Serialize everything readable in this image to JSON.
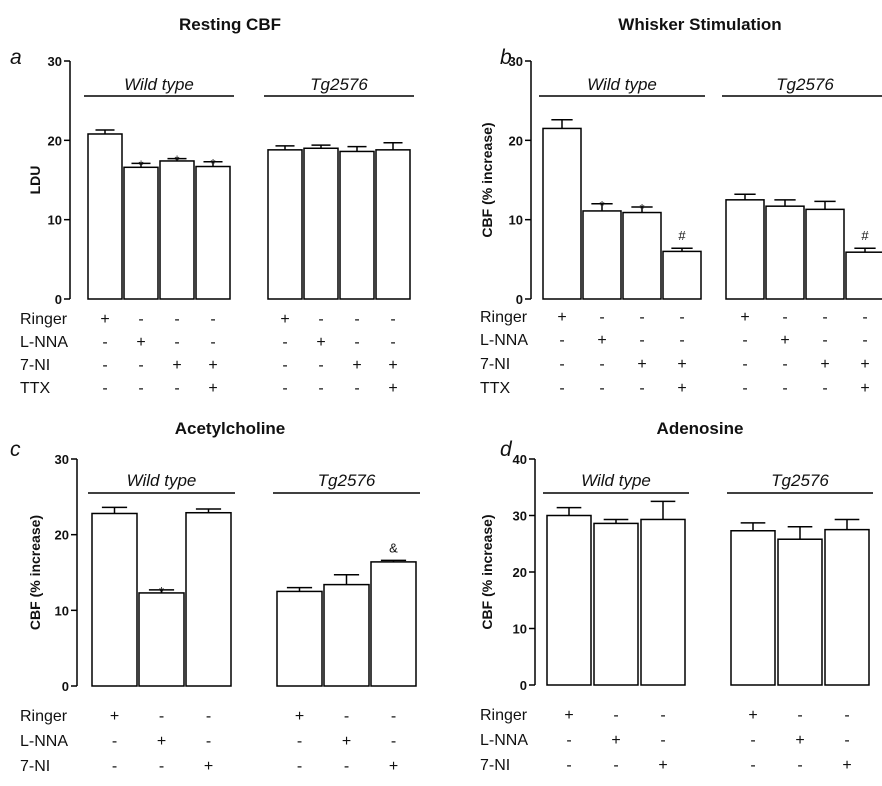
{
  "chart_data": [
    {
      "type": "bar",
      "letter": "a",
      "title": "Resting CBF",
      "ylabel": "LDU",
      "ylim": [
        0,
        30
      ],
      "yticks": [
        0,
        10,
        20,
        30
      ],
      "groups": [
        "Wild type",
        "Tg2576"
      ],
      "values": [
        [
          20.8,
          16.6,
          17.4,
          16.7
        ],
        [
          18.8,
          19.0,
          18.6,
          18.8
        ]
      ],
      "errors": [
        [
          0.5,
          0.5,
          0.3,
          0.6
        ],
        [
          0.5,
          0.4,
          0.6,
          0.9
        ]
      ],
      "annotations": [
        [
          "",
          "*",
          "*",
          "*"
        ],
        [
          "",
          "",
          "",
          ""
        ]
      ],
      "conditions": [
        {
          "label": "Ringer",
          "signs": [
            [
              "+",
              "-",
              "-",
              "-"
            ],
            [
              "+",
              "-",
              "-",
              "-"
            ]
          ]
        },
        {
          "label": "L-NNA",
          "signs": [
            [
              "-",
              "+",
              "-",
              "-"
            ],
            [
              "-",
              "+",
              "-",
              "-"
            ]
          ]
        },
        {
          "label": "7-NI",
          "signs": [
            [
              "-",
              "-",
              "+",
              "+"
            ],
            [
              "-",
              "-",
              "+",
              "+"
            ]
          ]
        },
        {
          "label": "TTX",
          "signs": [
            [
              "-",
              "-",
              "-",
              "+"
            ],
            [
              "-",
              "-",
              "-",
              "+"
            ]
          ]
        }
      ]
    },
    {
      "type": "bar",
      "letter": "b",
      "title": "Whisker Stimulation",
      "ylabel": "CBF (% increase)",
      "ylim": [
        0,
        30
      ],
      "yticks": [
        0,
        10,
        20,
        30
      ],
      "groups": [
        "Wild type",
        "Tg2576"
      ],
      "values": [
        [
          21.5,
          11.1,
          10.9,
          6.0
        ],
        [
          12.5,
          11.7,
          11.3,
          5.9
        ]
      ],
      "errors": [
        [
          1.1,
          0.9,
          0.7,
          0.4
        ],
        [
          0.7,
          0.8,
          1.0,
          0.5
        ]
      ],
      "annotations": [
        [
          "",
          "*",
          "*",
          "#"
        ],
        [
          "",
          "",
          "",
          "#"
        ]
      ],
      "conditions": [
        {
          "label": "Ringer",
          "signs": [
            [
              "+",
              "-",
              "-",
              "-"
            ],
            [
              "+",
              "-",
              "-",
              "-"
            ]
          ]
        },
        {
          "label": "L-NNA",
          "signs": [
            [
              "-",
              "+",
              "-",
              "-"
            ],
            [
              "-",
              "+",
              "-",
              "-"
            ]
          ]
        },
        {
          "label": "7-NI",
          "signs": [
            [
              "-",
              "-",
              "+",
              "+"
            ],
            [
              "-",
              "-",
              "+",
              "+"
            ]
          ]
        },
        {
          "label": "TTX",
          "signs": [
            [
              "-",
              "-",
              "-",
              "+"
            ],
            [
              "-",
              "-",
              "-",
              "+"
            ]
          ]
        }
      ]
    },
    {
      "type": "bar",
      "letter": "c",
      "title": "Acetylcholine",
      "ylabel": "CBF (% increase)",
      "ylim": [
        0,
        30
      ],
      "yticks": [
        0,
        10,
        20,
        30
      ],
      "groups": [
        "Wild type",
        "Tg2576"
      ],
      "values": [
        [
          22.8,
          12.3,
          22.9
        ],
        [
          12.5,
          13.4,
          16.4
        ]
      ],
      "errors": [
        [
          0.8,
          0.4,
          0.5
        ],
        [
          0.5,
          1.3,
          0.2
        ]
      ],
      "annotations": [
        [
          "",
          "*",
          ""
        ],
        [
          "",
          "",
          "&"
        ]
      ],
      "conditions": [
        {
          "label": "Ringer",
          "signs": [
            [
              "+",
              "-",
              "-"
            ],
            [
              "+",
              "-",
              "-"
            ]
          ]
        },
        {
          "label": "L-NNA",
          "signs": [
            [
              "-",
              "+",
              "-"
            ],
            [
              "-",
              "+",
              "-"
            ]
          ]
        },
        {
          "label": "7-NI",
          "signs": [
            [
              "-",
              "-",
              "+"
            ],
            [
              "-",
              "-",
              "+"
            ]
          ]
        }
      ]
    },
    {
      "type": "bar",
      "letter": "d",
      "title": "Adenosine",
      "ylabel": "CBF (% increase)",
      "ylim": [
        0,
        40
      ],
      "yticks": [
        0,
        10,
        20,
        30,
        40
      ],
      "groups": [
        "Wild type",
        "Tg2576"
      ],
      "values": [
        [
          30.0,
          28.6,
          29.3
        ],
        [
          27.3,
          25.8,
          27.5
        ]
      ],
      "errors": [
        [
          1.4,
          0.7,
          3.2
        ],
        [
          1.4,
          2.2,
          1.8
        ]
      ],
      "annotations": [
        [
          "",
          "",
          ""
        ],
        [
          "",
          "",
          ""
        ]
      ],
      "conditions": [
        {
          "label": "Ringer",
          "signs": [
            [
              "+",
              "-",
              "-"
            ],
            [
              "+",
              "-",
              "-"
            ]
          ]
        },
        {
          "label": "L-NNA",
          "signs": [
            [
              "-",
              "+",
              "-"
            ],
            [
              "-",
              "+",
              "-"
            ]
          ]
        },
        {
          "label": "7-NI",
          "signs": [
            [
              "-",
              "-",
              "+"
            ],
            [
              "-",
              "-",
              "+"
            ]
          ]
        }
      ]
    }
  ]
}
